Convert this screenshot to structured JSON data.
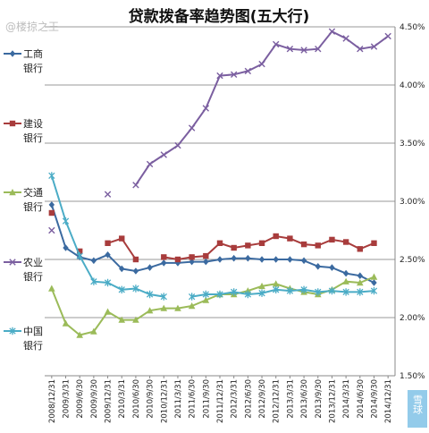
{
  "chart_data": {
    "type": "line",
    "title": "贷款拨备率趋势图(五大行)",
    "xlabel": "",
    "ylabel": "",
    "ylim": [
      1.5,
      4.5
    ],
    "y_ticks": [
      "1.50%",
      "2.00%",
      "2.50%",
      "3.00%",
      "3.50%",
      "4.00%",
      "4.50%"
    ],
    "grid": "horizontal",
    "legend_position": "left",
    "x": [
      "2008/12/31",
      "2009/3/31",
      "2009/6/30",
      "2009/9/30",
      "2009/12/31",
      "2010/3/31",
      "2010/6/30",
      "2010/9/30",
      "2010/12/31",
      "2011/3/31",
      "2011/6/30",
      "2011/9/30",
      "2011/12/31",
      "2012/3/31",
      "2012/6/30",
      "2012/9/30",
      "2012/12/31",
      "2013/3/31",
      "2013/6/30",
      "2013/9/30",
      "2013/12/31",
      "2014/3/31",
      "2014/6/30",
      "2014/9/30",
      "2014/12/31"
    ],
    "series": [
      {
        "name": "工商银行",
        "color": "#3b6aa0",
        "marker": "diamond",
        "values": [
          2.97,
          2.6,
          2.52,
          2.49,
          2.54,
          2.42,
          2.4,
          2.43,
          2.47,
          2.47,
          2.48,
          2.48,
          2.5,
          2.51,
          2.51,
          2.5,
          2.5,
          2.5,
          2.49,
          2.44,
          2.43,
          2.38,
          2.36,
          2.3,
          null
        ]
      },
      {
        "name": "建设银行",
        "color": "#a83c3c",
        "marker": "square",
        "values": [
          2.9,
          null,
          2.57,
          null,
          2.64,
          2.68,
          2.5,
          null,
          2.52,
          2.5,
          2.52,
          2.53,
          2.64,
          2.6,
          2.62,
          2.64,
          2.7,
          2.68,
          2.63,
          2.62,
          2.67,
          2.65,
          2.59,
          2.64,
          null
        ]
      },
      {
        "name": "交通银行",
        "color": "#9bbb59",
        "marker": "triangle",
        "values": [
          2.25,
          1.95,
          1.85,
          1.88,
          2.05,
          1.98,
          1.98,
          2.06,
          2.08,
          2.08,
          2.1,
          2.15,
          2.2,
          2.2,
          2.23,
          2.27,
          2.29,
          2.25,
          2.22,
          2.2,
          2.24,
          2.31,
          2.3,
          2.35,
          null
        ]
      },
      {
        "name": "农业银行",
        "color": "#7b5fa0",
        "marker": "x",
        "values": [
          2.75,
          null,
          null,
          null,
          3.06,
          null,
          3.14,
          3.32,
          3.4,
          3.48,
          3.63,
          3.8,
          4.08,
          4.09,
          4.12,
          4.18,
          4.35,
          4.31,
          4.3,
          4.31,
          4.46,
          4.4,
          4.31,
          4.33,
          4.42
        ]
      },
      {
        "name": "中国银行",
        "color": "#4bacc6",
        "marker": "star",
        "values": [
          3.22,
          2.83,
          2.53,
          2.31,
          2.3,
          2.24,
          2.25,
          2.2,
          2.18,
          null,
          2.18,
          2.2,
          2.2,
          2.22,
          2.2,
          2.21,
          2.24,
          2.23,
          2.24,
          2.22,
          2.23,
          2.22,
          2.22,
          2.23,
          null
        ]
      }
    ]
  },
  "legend": [
    {
      "line1": "工商",
      "line2": "银行"
    },
    {
      "line1": "建设",
      "line2": "银行"
    },
    {
      "line1": "交通",
      "line2": "银行"
    },
    {
      "line1": "农业",
      "line2": "银行"
    },
    {
      "line1": "中国",
      "line2": "银行"
    }
  ],
  "watermarks": {
    "top_left": "@楼掠之王",
    "bottom_right": "雪球"
  }
}
